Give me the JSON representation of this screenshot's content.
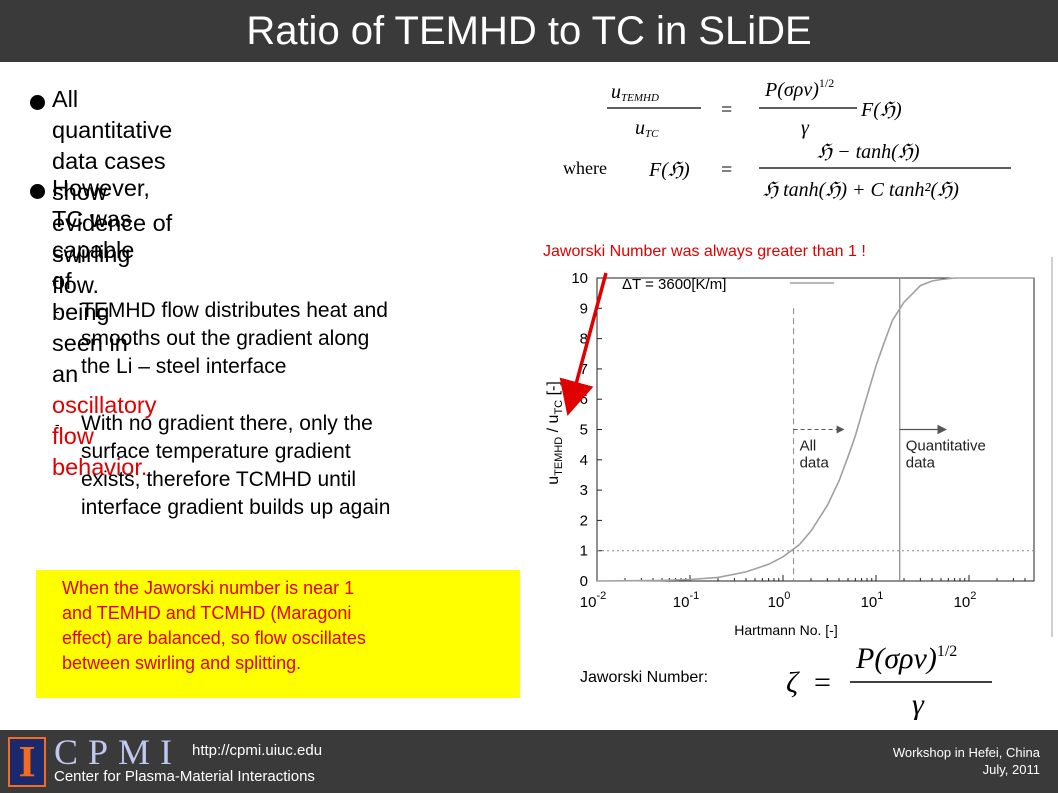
{
  "title": "Ratio of TEMHD to TC in SLiDE",
  "bullets": [
    {
      "line1": "All quantitative data cases show",
      "line2": "evidence of swirling flow."
    },
    {
      "line1": "However, TC was capable of",
      "line2": "being seen in an ",
      "line2_red": "oscillatory flow",
      "line3_red": "behavior."
    }
  ],
  "subbullets": [
    {
      "dash": "-",
      "lines": [
        "TEMHD flow distributes heat and",
        "smooths out the gradient along",
        "the Li – steel interface"
      ]
    },
    {
      "dash": "-",
      "lines": [
        "With no gradient there, only the",
        "surface temperature gradient",
        "exists, therefore TCMHD until",
        "interface gradient builds up again"
      ]
    }
  ],
  "note": {
    "lines": [
      "When the Jaworski number is near 1",
      "and TEMHD and TCMHD (Maragoni",
      "effect) are balanced, so flow oscillates",
      "between swirling and splitting."
    ],
    "trailing_period": "."
  },
  "equations": {
    "where": "where",
    "lhs_num": "u",
    "lhs_num_sub": "TEMHD",
    "lhs_den": "u",
    "lhs_den_sub": "TC",
    "eq_sign": "=",
    "rhs1_num": "P(σρν)",
    "rhs1_exp": "1/2",
    "rhs1_den": "γ",
    "rhs1_tail": "F(ℌ)",
    "F_label": "F(ℌ)",
    "rhs2_num": "ℌ − tanh(ℌ)",
    "rhs2_den": "ℌ tanh(ℌ) + C tanh²(ℌ)"
  },
  "jaworski_label": "Jaworski Number was always greater than 1  !",
  "jaworski_number_label": "Jaworski Number:",
  "jaworski_eq": {
    "zeta": "ζ",
    "eq": "=",
    "num": "P(σρν)",
    "exp": "1/2",
    "den": "γ"
  },
  "chart_data": {
    "type": "line",
    "title": "",
    "xlabel": "Hartmann No. [-]",
    "ylabel": "u",
    "ylabel_sub": "TEMHD",
    "ylabel_mid": " / u",
    "ylabel_sub2": "TC",
    "ylabel_tail": " [-]",
    "x_scale": "log",
    "xlim": [
      0.01,
      500
    ],
    "ylim": [
      0,
      10
    ],
    "x_ticks": [
      {
        "base": "10",
        "exp": "-2",
        "value": 0.01
      },
      {
        "base": "10",
        "exp": "-1",
        "value": 0.1
      },
      {
        "base": "10",
        "exp": "0",
        "value": 1
      },
      {
        "base": "10",
        "exp": "1",
        "value": 10
      },
      {
        "base": "10",
        "exp": "2",
        "value": 100
      }
    ],
    "y_ticks": [
      "0",
      "1",
      "2",
      "3",
      "4",
      "5",
      "6",
      "7",
      "8",
      "9",
      "10"
    ],
    "legend": "ΔT = 3600[K/m]",
    "legend_position": "top-left",
    "series": [
      {
        "x": [
          0.01,
          0.05,
          0.1,
          0.2,
          0.4,
          0.7,
          1.0,
          1.5,
          2.0,
          3.0,
          4.0,
          5.0,
          6.0,
          7.0,
          8.0,
          10.0,
          12.0,
          15.0,
          20.0,
          25.0,
          30.0,
          40.0,
          50.0,
          70.0,
          100.0,
          200.0,
          500.0
        ],
        "y": [
          0.0,
          0.02,
          0.05,
          0.12,
          0.3,
          0.55,
          0.8,
          1.2,
          1.65,
          2.5,
          3.3,
          4.1,
          4.8,
          5.5,
          6.1,
          7.1,
          7.8,
          8.6,
          9.2,
          9.5,
          9.75,
          9.9,
          9.95,
          10.0,
          10.0,
          10.0,
          10.0
        ]
      }
    ],
    "reference_line_y": 1,
    "vline_all_data_x": 1.3,
    "vline_quant_x": 18,
    "annotations": [
      {
        "text_lines": [
          "All",
          "data"
        ],
        "x": 1.3
      },
      {
        "text_lines": [
          "Quantitative",
          "data"
        ],
        "x": 18
      }
    ]
  },
  "footer": {
    "logo_letter": "I",
    "brand": "CPMI",
    "url": "http://cpmi.uiuc.edu",
    "center": "Center for Plasma-Material Interactions",
    "right_line1": "Workshop in Hefei, China",
    "right_line2": "July, 2011"
  },
  "colors": {
    "title_bar": "#3a3a3a",
    "note_bg": "#ffff00",
    "accent_red": "#e00000",
    "curve": "#a0a0a0"
  }
}
